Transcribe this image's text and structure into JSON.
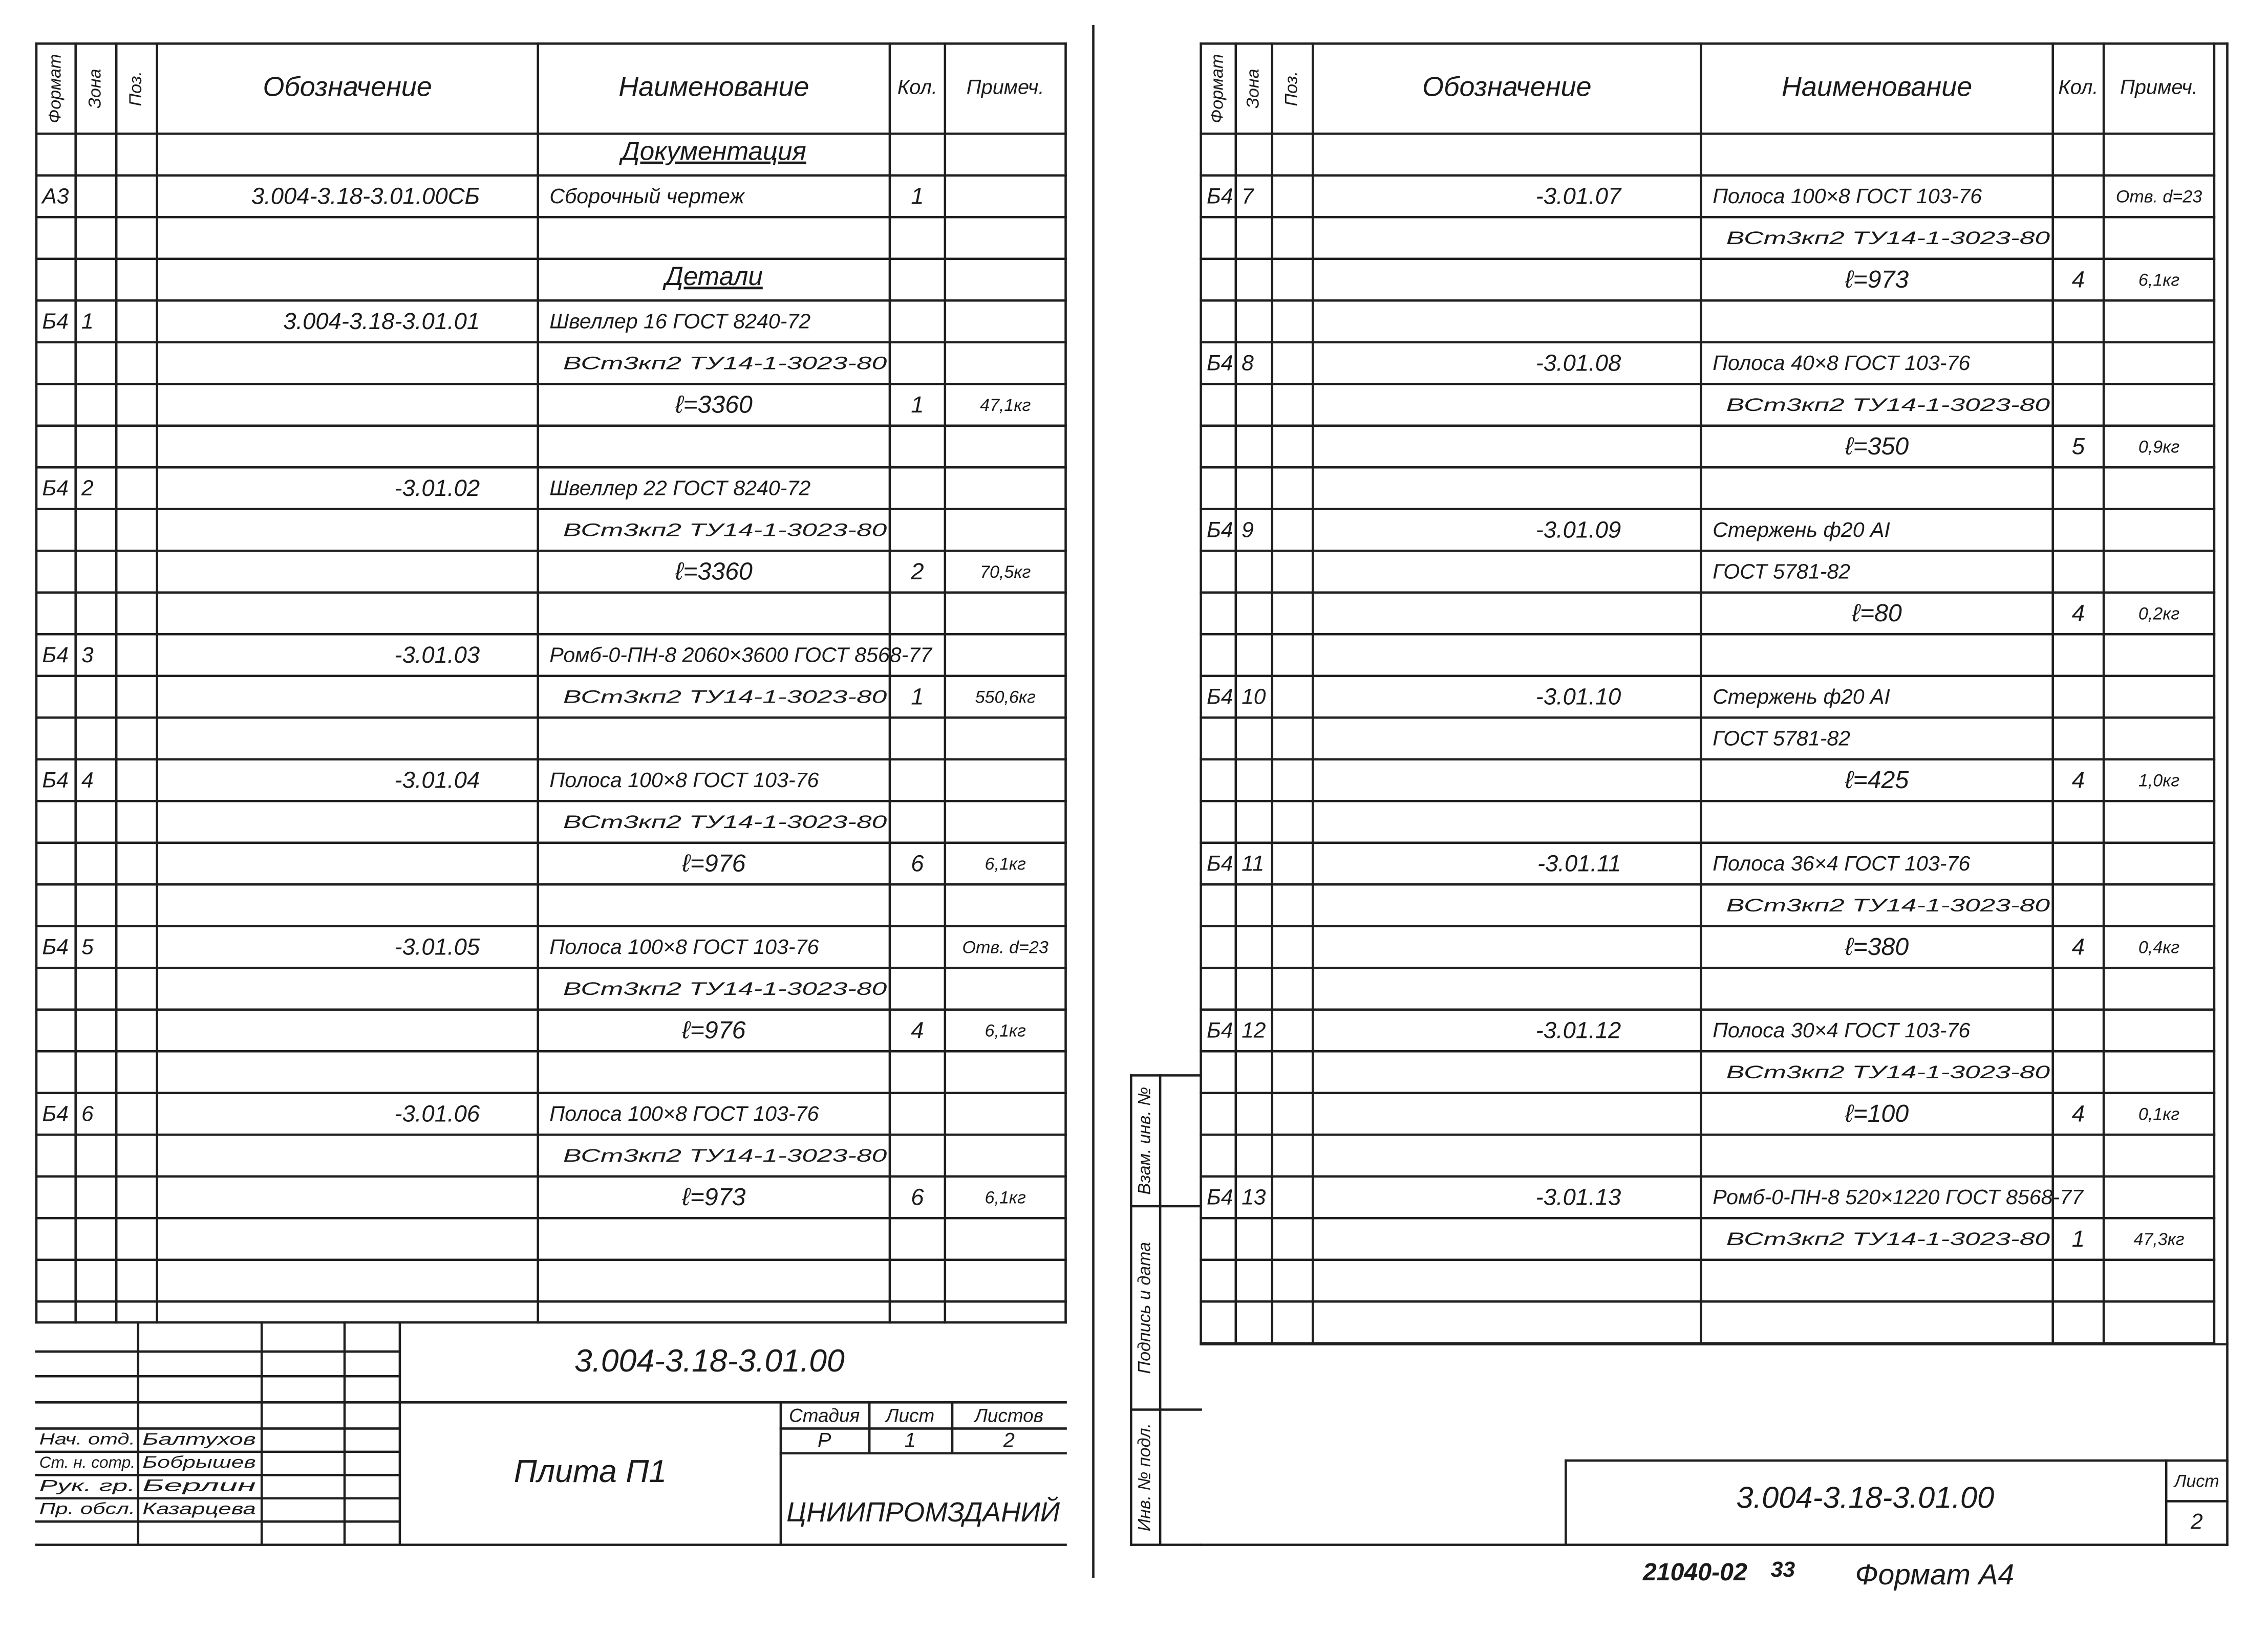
{
  "left": {
    "headers": [
      "Формат",
      "Зона",
      "Поз.",
      "Обозначение",
      "Наименование",
      "Кол.",
      "Примеч."
    ],
    "rows": [
      [
        null,
        null,
        null,
        null,
        "Документация",
        null,
        null
      ],
      [
        "А3",
        null,
        null,
        "3.004-3.18-3.01.00СБ",
        "Сборочный чертеж",
        "1",
        null
      ],
      null,
      [
        null,
        null,
        null,
        null,
        "Детали",
        null,
        null
      ],
      [
        "Б4",
        "1",
        null,
        "3.004-3.18-3.01.01",
        "Швеллер 16 ГОСТ 8240-72",
        null,
        null
      ],
      [
        null,
        null,
        null,
        null,
        "ВСт3кп2 ТУ14-1-3023-80",
        null,
        null
      ],
      [
        null,
        null,
        null,
        null,
        "ℓ=3360",
        "1",
        "47,1кг"
      ],
      null,
      [
        "Б4",
        "2",
        null,
        "-3.01.02",
        "Швеллер 22 ГОСТ 8240-72",
        null,
        null
      ],
      [
        null,
        null,
        null,
        null,
        "ВСт3кп2 ТУ14-1-3023-80",
        null,
        null
      ],
      [
        null,
        null,
        null,
        null,
        "ℓ=3360",
        "2",
        "70,5кг"
      ],
      null,
      [
        "Б4",
        "3",
        null,
        "-3.01.03",
        "Ромб-0-ПН-8 2060×3600 ГОСТ 8568-77",
        null,
        null
      ],
      [
        null,
        null,
        null,
        null,
        "ВСт3кп2 ТУ14-1-3023-80",
        "1",
        "550,6кг"
      ],
      null,
      [
        "Б4",
        "4",
        null,
        "-3.01.04",
        "Полоса 100×8 ГОСТ 103-76",
        null,
        null
      ],
      [
        null,
        null,
        null,
        null,
        "ВСт3кп2 ТУ14-1-3023-80",
        null,
        null
      ],
      [
        null,
        null,
        null,
        null,
        "ℓ=976",
        "6",
        "6,1кг"
      ],
      null,
      [
        "Б4",
        "5",
        null,
        "-3.01.05",
        "Полоса 100×8 ГОСТ 103-76",
        null,
        "Отв. d=23"
      ],
      [
        null,
        null,
        null,
        null,
        "ВСт3кп2 ТУ14-1-3023-80",
        null,
        null
      ],
      [
        null,
        null,
        null,
        null,
        "ℓ=976",
        "4",
        "6,1кг"
      ],
      null,
      [
        "Б4",
        "6",
        null,
        "-3.01.06",
        "Полоса 100×8 ГОСТ 103-76",
        null,
        null
      ],
      [
        null,
        null,
        null,
        null,
        "ВСт3кп2 ТУ14-1-3023-80",
        null,
        null
      ],
      [
        null,
        null,
        null,
        null,
        "ℓ=973",
        "6",
        "6,1кг"
      ],
      null,
      null
    ]
  },
  "title_block": {
    "code": "3.004-3.18-3.01.00",
    "name": "Плита П1",
    "stage_label": "Стадия",
    "sheet_label": "Лист",
    "sheets_label": "Листов",
    "stage": "Р",
    "sheet": "1",
    "sheets": "2",
    "org": "ЦНИИПРОМЗДАНИЙ",
    "roles": [
      "Нач. отд.",
      "Ст. н. сотр.",
      "Рук. гр.",
      "Пр. обсл."
    ],
    "names": [
      "Балтухов",
      "Бобрышев",
      "Берлин",
      "Казарцева"
    ]
  },
  "right": {
    "headers": [
      "Формат",
      "Зона",
      "Поз.",
      "Обозначение",
      "Наименование",
      "Кол.",
      "Примеч."
    ],
    "rows": [
      null,
      [
        "Б4",
        "7",
        null,
        "-3.01.07",
        "Полоса 100×8 ГОСТ 103-76",
        null,
        "Отв. d=23"
      ],
      [
        null,
        null,
        null,
        null,
        "ВСт3кп2 ТУ14-1-3023-80",
        null,
        null
      ],
      [
        null,
        null,
        null,
        null,
        "ℓ=973",
        "4",
        "6,1кг"
      ],
      null,
      [
        "Б4",
        "8",
        null,
        "-3.01.08",
        "Полоса 40×8 ГОСТ 103-76",
        null,
        null
      ],
      [
        null,
        null,
        null,
        null,
        "ВСт3кп2 ТУ14-1-3023-80",
        null,
        null
      ],
      [
        null,
        null,
        null,
        null,
        "ℓ=350",
        "5",
        "0,9кг"
      ],
      null,
      [
        "Б4",
        "9",
        null,
        "-3.01.09",
        "Стержень ф20 АI",
        null,
        null
      ],
      [
        null,
        null,
        null,
        null,
        "ГОСТ 5781-82",
        null,
        null
      ],
      [
        null,
        null,
        null,
        null,
        "ℓ=80",
        "4",
        "0,2кг"
      ],
      null,
      [
        "Б4",
        "10",
        null,
        "-3.01.10",
        "Стержень ф20 АI",
        null,
        null
      ],
      [
        null,
        null,
        null,
        null,
        "ГОСТ 5781-82",
        null,
        null
      ],
      [
        null,
        null,
        null,
        null,
        "ℓ=425",
        "4",
        "1,0кг"
      ],
      null,
      [
        "Б4",
        "11",
        null,
        "-3.01.11",
        "Полоса 36×4 ГОСТ 103-76",
        null,
        null
      ],
      [
        null,
        null,
        null,
        null,
        "ВСт3кп2 ТУ14-1-3023-80",
        null,
        null
      ],
      [
        null,
        null,
        null,
        null,
        "ℓ=380",
        "4",
        "0,4кг"
      ],
      null,
      [
        "Б4",
        "12",
        null,
        "-3.01.12",
        "Полоса 30×4 ГОСТ 103-76",
        null,
        null
      ],
      [
        null,
        null,
        null,
        null,
        "ВСт3кп2 ТУ14-1-3023-80",
        null,
        null
      ],
      [
        null,
        null,
        null,
        null,
        "ℓ=100",
        "4",
        "0,1кг"
      ],
      null,
      [
        "Б4",
        "13",
        null,
        "-3.01.13",
        "Ромб-0-ПН-8 520×1220 ГОСТ 8568-77",
        null,
        null
      ],
      [
        null,
        null,
        null,
        null,
        "ВСт3кп2 ТУ14-1-3023-80",
        "1",
        "47,3кг"
      ],
      null,
      null
    ]
  },
  "side_labels": [
    "Взам. инв. №",
    "Подпись и дата",
    "Инв. № подл."
  ],
  "right_footer": {
    "code": "3.004-3.18-3.01.00",
    "sheet_label": "Лист",
    "sheet": "2"
  },
  "bottom": {
    "number": "21040-02",
    "page": "33",
    "format": "Формат А4"
  }
}
